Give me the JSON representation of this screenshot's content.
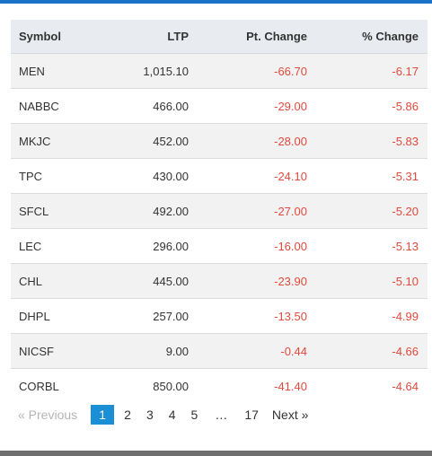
{
  "table": {
    "headers": {
      "symbol": "Symbol",
      "ltp": "LTP",
      "pt_change": "Pt. Change",
      "pct_change": "% Change"
    },
    "rows": [
      {
        "symbol": "MEN",
        "ltp": "1,015.10",
        "pt_change": "-66.70",
        "pct_change": "-6.17"
      },
      {
        "symbol": "NABBC",
        "ltp": "466.00",
        "pt_change": "-29.00",
        "pct_change": "-5.86"
      },
      {
        "symbol": "MKJC",
        "ltp": "452.00",
        "pt_change": "-28.00",
        "pct_change": "-5.83"
      },
      {
        "symbol": "TPC",
        "ltp": "430.00",
        "pt_change": "-24.10",
        "pct_change": "-5.31"
      },
      {
        "symbol": "SFCL",
        "ltp": "492.00",
        "pt_change": "-27.00",
        "pct_change": "-5.20"
      },
      {
        "symbol": "LEC",
        "ltp": "296.00",
        "pt_change": "-16.00",
        "pct_change": "-5.13"
      },
      {
        "symbol": "CHL",
        "ltp": "445.00",
        "pt_change": "-23.90",
        "pct_change": "-5.10"
      },
      {
        "symbol": "DHPL",
        "ltp": "257.00",
        "pt_change": "-13.50",
        "pct_change": "-4.99"
      },
      {
        "symbol": "NICSF",
        "ltp": "9.00",
        "pt_change": "-0.44",
        "pct_change": "-4.66"
      },
      {
        "symbol": "CORBL",
        "ltp": "850.00",
        "pt_change": "-41.40",
        "pct_change": "-4.64"
      }
    ]
  },
  "pagination": {
    "previous": "« Previous",
    "pages": [
      "1",
      "2",
      "3",
      "4",
      "5"
    ],
    "active_page": "1",
    "ellipsis": "…",
    "last_page": "17",
    "next": "Next »"
  },
  "colors": {
    "accent": "#1a73c8",
    "active_page": "#1a8fd6",
    "negative": "#e04a3c",
    "header_bg": "#e8ebef",
    "alt_row_bg": "#f2f2f2"
  }
}
